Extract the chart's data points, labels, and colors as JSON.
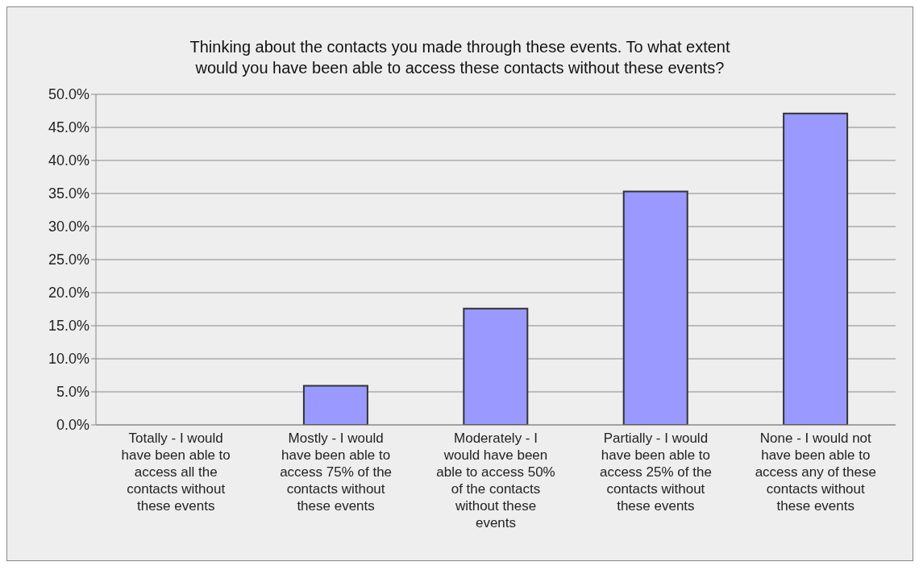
{
  "chart_data": {
    "type": "bar",
    "title": "Thinking about the contacts you made through these events.  To what extent would you have been able to access these contacts without these events?",
    "categories": [
      "Totally - I would have been able to access all the contacts without these events",
      "Mostly - I would have been able to access 75% of the contacts without these events",
      "Moderately - I would have been able to access 50% of the contacts without these events",
      "Partially - I would have been able to access 25% of the contacts without these events",
      "None - I would not have been able to access any of these contacts without these events"
    ],
    "values": [
      0,
      5.9,
      17.6,
      35.3,
      47.1
    ],
    "color": "#9999ff",
    "ylim": [
      0,
      50
    ],
    "yticks": [
      {
        "value": 0,
        "label": "0.0%"
      },
      {
        "value": 5,
        "label": "5.0%"
      },
      {
        "value": 10,
        "label": "10.0%"
      },
      {
        "value": 15,
        "label": "15.0%"
      },
      {
        "value": 20,
        "label": "20.0%"
      },
      {
        "value": 25,
        "label": "25.0%"
      },
      {
        "value": 30,
        "label": "30.0%"
      },
      {
        "value": 35,
        "label": "35.0%"
      },
      {
        "value": 40,
        "label": "40.0%"
      },
      {
        "value": 45,
        "label": "45.0%"
      },
      {
        "value": 50,
        "label": "50.0%"
      }
    ],
    "grid": "y"
  }
}
